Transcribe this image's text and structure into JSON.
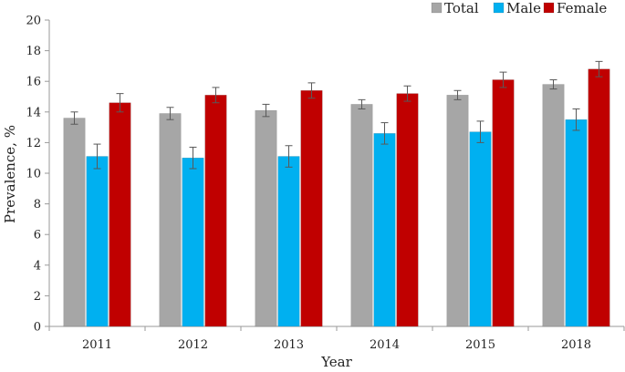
{
  "chart_data": {
    "type": "bar",
    "title": "",
    "xlabel": "Year",
    "ylabel": "Prevalence, %",
    "ylim": [
      0,
      20
    ],
    "yticks": [
      0,
      2,
      4,
      6,
      8,
      10,
      12,
      14,
      16,
      18,
      20
    ],
    "categories": [
      "2011",
      "2012",
      "2013",
      "2014",
      "2015",
      "2018"
    ],
    "series": [
      {
        "name": "Total",
        "color": "#a6a6a6",
        "values": [
          13.6,
          13.9,
          14.1,
          14.5,
          15.1,
          15.8
        ],
        "errors": [
          0.4,
          0.4,
          0.4,
          0.3,
          0.3,
          0.3
        ]
      },
      {
        "name": "Male",
        "color": "#00b0f0",
        "values": [
          11.1,
          11.0,
          11.1,
          12.6,
          12.7,
          13.5
        ],
        "errors": [
          0.8,
          0.7,
          0.7,
          0.7,
          0.7,
          0.7
        ]
      },
      {
        "name": "Female",
        "color": "#c00000",
        "values": [
          14.6,
          15.1,
          15.4,
          15.2,
          16.1,
          16.8
        ],
        "errors": [
          0.6,
          0.5,
          0.5,
          0.5,
          0.5,
          0.5
        ]
      }
    ],
    "legend_position": "top-right",
    "grid": false
  }
}
